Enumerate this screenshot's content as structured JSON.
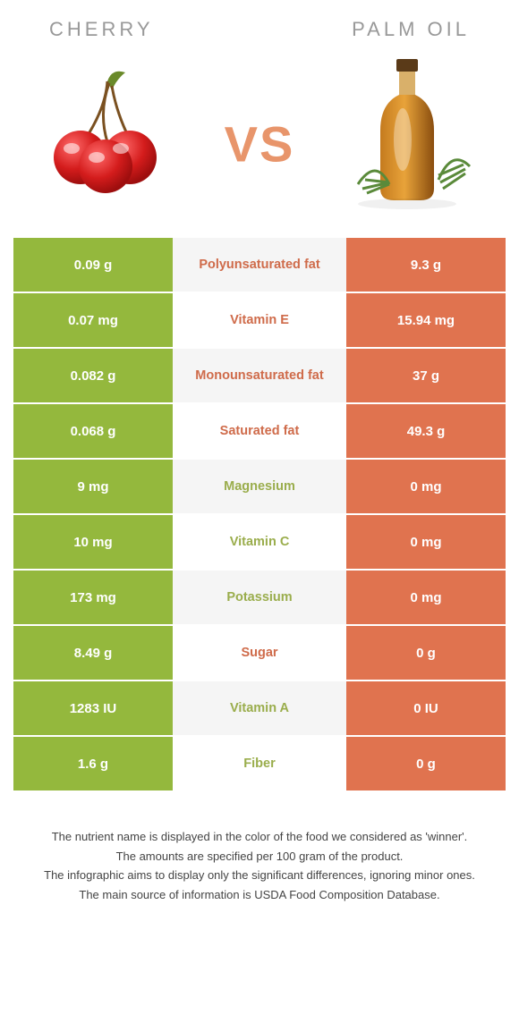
{
  "colors": {
    "cherry": "#94b83d",
    "palm": "#e0734f",
    "cherry_text": "#9aad4c",
    "palm_text": "#cf6b4a",
    "row_alt_bg": "#f5f5f5",
    "vs": "#e8956b",
    "title_gray": "#999999"
  },
  "left_title": "CHERRY",
  "right_title": "PALM OIL",
  "vs_label": "VS",
  "rows": [
    {
      "left": "0.09 g",
      "label": "Polyunsaturated fat",
      "right": "9.3 g",
      "winner": "palm"
    },
    {
      "left": "0.07 mg",
      "label": "Vitamin E",
      "right": "15.94 mg",
      "winner": "palm"
    },
    {
      "left": "0.082 g",
      "label": "Monounsaturated fat",
      "right": "37 g",
      "winner": "palm"
    },
    {
      "left": "0.068 g",
      "label": "Saturated fat",
      "right": "49.3 g",
      "winner": "palm"
    },
    {
      "left": "9 mg",
      "label": "Magnesium",
      "right": "0 mg",
      "winner": "cherry"
    },
    {
      "left": "10 mg",
      "label": "Vitamin C",
      "right": "0 mg",
      "winner": "cherry"
    },
    {
      "left": "173 mg",
      "label": "Potassium",
      "right": "0 mg",
      "winner": "cherry"
    },
    {
      "left": "8.49 g",
      "label": "Sugar",
      "right": "0 g",
      "winner": "palm"
    },
    {
      "left": "1283 IU",
      "label": "Vitamin A",
      "right": "0 IU",
      "winner": "cherry"
    },
    {
      "left": "1.6 g",
      "label": "Fiber",
      "right": "0 g",
      "winner": "cherry"
    }
  ],
  "footnotes": [
    "The nutrient name is displayed in the color of the food we considered as 'winner'.",
    "The amounts are specified per 100 gram of the product.",
    "The infographic aims to display only the significant differences, ignoring minor ones.",
    "The main source of information is USDA Food Composition Database."
  ]
}
